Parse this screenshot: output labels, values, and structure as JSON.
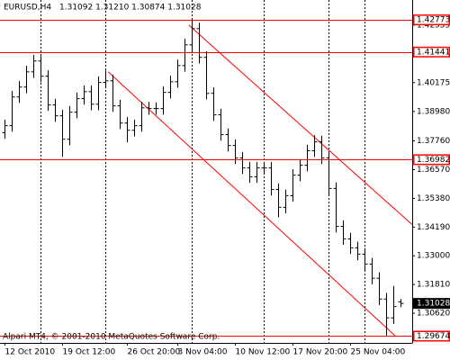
{
  "chart_data": {
    "type": "ohlc",
    "symbol": "EURUSD,H4",
    "ohlc_label": "1.31092 1.31210 1.30874 1.31028",
    "copyright": "Alpari MT4, © 2001-2010 MetaQuotes Software Corp.",
    "color": "#000000",
    "open": [
      1.381,
      1.3839,
      1.3958,
      1.3999,
      1.4062,
      1.4107,
      1.4044,
      1.3925,
      1.388,
      1.3783,
      1.3895,
      1.3951,
      1.398,
      1.3928,
      1.4018,
      1.4025,
      1.3921,
      1.385,
      1.382,
      1.3839,
      1.3913,
      1.391,
      1.391,
      1.3977,
      1.4021,
      1.4088,
      1.4174,
      1.4241,
      1.4122,
      1.3973,
      1.3884,
      1.3802,
      1.3757,
      1.3705,
      1.3664,
      1.3627,
      1.3664,
      1.3664,
      1.3575,
      1.3501,
      1.3549,
      1.3634,
      1.3675,
      1.3735,
      1.3772,
      1.3705,
      1.3579,
      1.3422,
      1.337,
      1.3333,
      1.3307,
      1.3266,
      1.3207,
      1.3121,
      1.3043,
      1.31092
    ],
    "high": [
      1.3864,
      1.3983,
      1.4024,
      1.4087,
      1.4132,
      1.4132,
      1.4069,
      1.395,
      1.3905,
      1.392,
      1.3976,
      1.4005,
      1.4005,
      1.4043,
      1.4075,
      1.405,
      1.3946,
      1.3875,
      1.3864,
      1.3938,
      1.3938,
      1.3935,
      1.4002,
      1.4046,
      1.4113,
      1.4199,
      1.4277,
      1.4266,
      1.4147,
      1.3998,
      1.3909,
      1.3827,
      1.3782,
      1.373,
      1.3689,
      1.3689,
      1.3689,
      1.3689,
      1.36,
      1.3574,
      1.3659,
      1.37,
      1.376,
      1.38,
      1.3797,
      1.373,
      1.3604,
      1.3447,
      1.3395,
      1.3358,
      1.3332,
      1.3291,
      1.3232,
      1.3146,
      1.3175,
      1.3121
    ],
    "low": [
      1.3785,
      1.3814,
      1.3933,
      1.3974,
      1.4037,
      1.4019,
      1.39,
      1.3855,
      1.371,
      1.3758,
      1.387,
      1.3926,
      1.3903,
      1.3903,
      1.3993,
      1.3896,
      1.3825,
      1.377,
      1.3795,
      1.3814,
      1.3885,
      1.3885,
      1.3885,
      1.3952,
      1.3996,
      1.4063,
      1.4149,
      1.4097,
      1.3948,
      1.3859,
      1.3777,
      1.3732,
      1.368,
      1.3639,
      1.3602,
      1.3602,
      1.3639,
      1.355,
      1.346,
      1.3476,
      1.3524,
      1.3609,
      1.365,
      1.371,
      1.368,
      1.3554,
      1.3397,
      1.3345,
      1.3308,
      1.3282,
      1.3241,
      1.3182,
      1.3096,
      1.2968,
      1.3018,
      1.30874
    ],
    "close": [
      1.3839,
      1.3958,
      1.3999,
      1.4062,
      1.4107,
      1.4044,
      1.3925,
      1.388,
      1.3783,
      1.3895,
      1.3951,
      1.398,
      1.3928,
      1.4018,
      1.4025,
      1.3921,
      1.385,
      1.382,
      1.3839,
      1.3913,
      1.391,
      1.391,
      1.3977,
      1.4021,
      1.4088,
      1.4174,
      1.4241,
      1.4122,
      1.3973,
      1.3884,
      1.3802,
      1.3757,
      1.3705,
      1.3664,
      1.3627,
      1.3664,
      1.3664,
      1.3575,
      1.3501,
      1.3549,
      1.3634,
      1.3675,
      1.3735,
      1.3772,
      1.3705,
      1.3579,
      1.3422,
      1.337,
      1.3333,
      1.3307,
      1.3266,
      1.3207,
      1.3121,
      1.3043,
      1.309,
      1.31028
    ],
    "xlim": [
      -0.625,
      56.625
    ],
    "ylim": [
      1.29393,
      1.43596
    ],
    "xticks": [
      {
        "value": 0,
        "label": "12 Oct 2010"
      },
      {
        "value": 8,
        "label": "19 Oct 12:00"
      },
      {
        "value": 17,
        "label": "26 Oct 20:00"
      },
      {
        "value": 24,
        "label": "3 Nov 04:00"
      },
      {
        "value": 32,
        "label": "10 Nov 12:00"
      },
      {
        "value": 40,
        "label": "17 Nov 20:00"
      },
      {
        "value": 48,
        "label": "25 Nov 04:00"
      }
    ],
    "yticks": [
      1.42555,
      1.40175,
      {
        "value": 1.3898,
        "label": "1.38980"
      },
      {
        "value": 1.3776,
        "label": "1.37760"
      },
      {
        "value": 1.3657,
        "label": "1.36570"
      },
      {
        "value": 1.3538,
        "label": "1.35380"
      },
      {
        "value": 1.3419,
        "label": "1.34190"
      },
      {
        "value": 1.33,
        "label": "1.33000"
      },
      {
        "value": 1.3181,
        "label": "1.31810"
      },
      {
        "value": 1.3062,
        "label": "1.30620"
      }
    ],
    "grid": "vertical",
    "period_separators": [
      5,
      14,
      26,
      36,
      45,
      50
    ],
    "levels": [
      1.42773,
      1.41441,
      1.36982,
      1.29674
    ],
    "level_color": "#ff0000",
    "current_price": 1.31028,
    "trendlines": [
      {
        "x": [
          25.6,
          56.6
        ],
        "y": [
          1.42555,
          1.34299
        ]
      },
      {
        "x": [
          14.4,
          54.4
        ],
        "y": [
          1.40621,
          1.2965
        ]
      }
    ]
  }
}
